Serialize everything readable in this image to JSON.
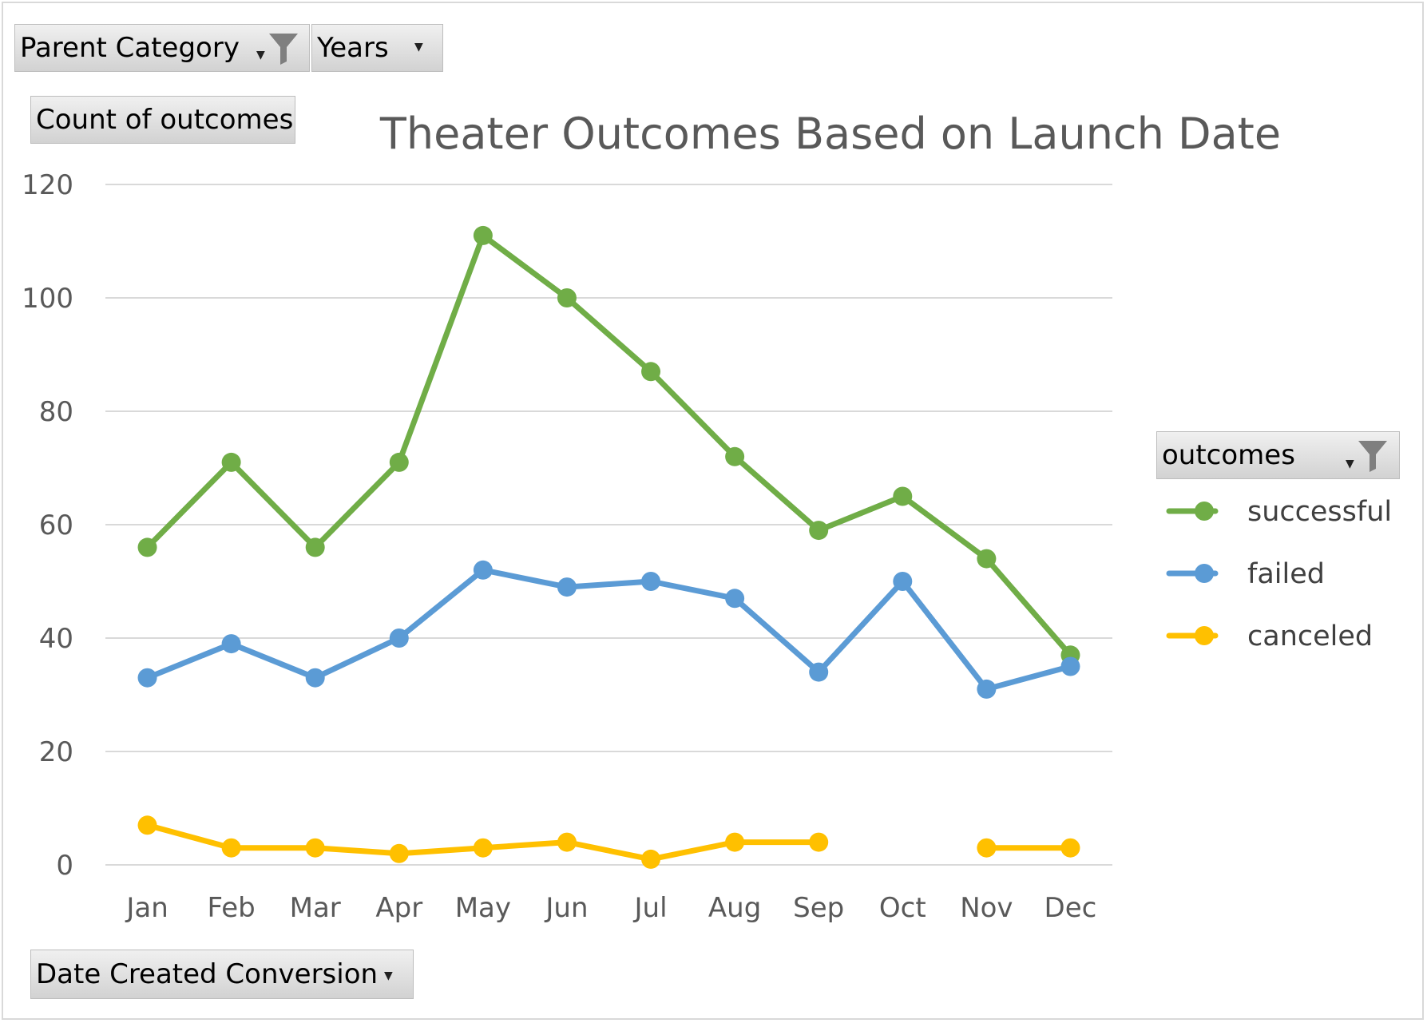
{
  "filters": {
    "parent_category": {
      "label": "Parent Category",
      "icon": "filter-funnel-icon"
    },
    "years": {
      "label": "Years",
      "icon": "chevron-down-icon"
    },
    "values_field": {
      "label": "Count of outcomes"
    },
    "axis_field": {
      "label": "Date Created Conversion",
      "icon": "chevron-down-icon"
    },
    "legend_field": {
      "label": "outcomes",
      "icon": "filter-funnel-icon"
    }
  },
  "chart_data": {
    "type": "line",
    "title": "Theater Outcomes Based on Launch Date",
    "xlabel": "",
    "ylabel": "",
    "categories": [
      "Jan",
      "Feb",
      "Mar",
      "Apr",
      "May",
      "Jun",
      "Jul",
      "Aug",
      "Sep",
      "Oct",
      "Nov",
      "Dec"
    ],
    "ylim": [
      0,
      120
    ],
    "yticks": [
      0,
      20,
      40,
      60,
      80,
      100,
      120
    ],
    "grid": true,
    "legend_position": "right",
    "series": [
      {
        "name": "successful",
        "color": "#70ad47",
        "values": [
          56,
          71,
          56,
          71,
          111,
          100,
          87,
          72,
          59,
          65,
          54,
          37
        ]
      },
      {
        "name": "failed",
        "color": "#5b9bd5",
        "values": [
          33,
          39,
          33,
          40,
          52,
          49,
          50,
          47,
          34,
          50,
          31,
          35
        ]
      },
      {
        "name": "canceled",
        "color": "#ffc000",
        "values": [
          7,
          3,
          3,
          2,
          3,
          4,
          1,
          4,
          4,
          null,
          3,
          3
        ]
      }
    ]
  }
}
